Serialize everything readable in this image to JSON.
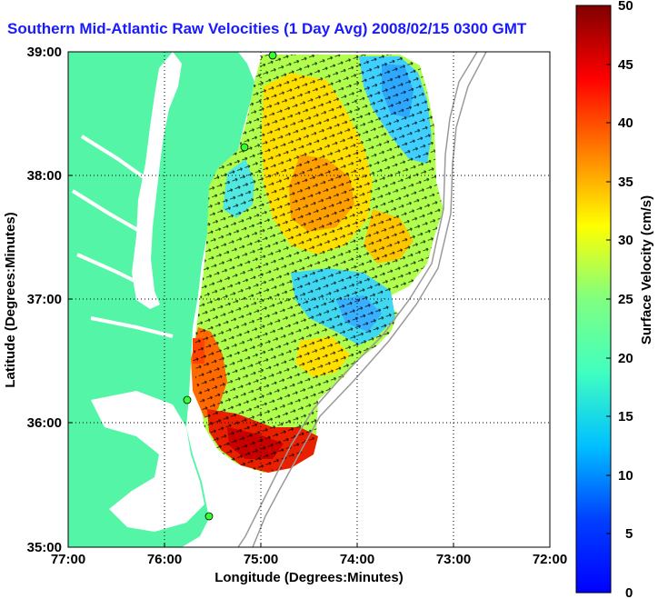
{
  "title": "Southern Mid-Atlantic Raw Velocities (1 Day Avg) 2008/02/15 0300 GMT",
  "x_axis": {
    "label": "Longitude (Degrees:Minutes)",
    "ticks": [
      "77:00",
      "76:00",
      "75:00",
      "74:00",
      "73:00",
      "72:00"
    ]
  },
  "y_axis": {
    "label": "Latitude (Degrees:Minutes)",
    "ticks": [
      "39:00",
      "38:00",
      "37:00",
      "36:00",
      "35:00"
    ]
  },
  "colorbar": {
    "label": "Surface Velocity (cm/s)",
    "ticks": [
      "50",
      "45",
      "40",
      "35",
      "30",
      "25",
      "20",
      "15",
      "10",
      "5",
      "0"
    ],
    "range": [
      0,
      50
    ],
    "colormap": "jet"
  },
  "colors": {
    "land": "#55f5a8",
    "water": "#ffffff",
    "title": "#1a1aff",
    "station": "#33ff33"
  },
  "grid": "dotted",
  "icons": [
    "radar-station-icon"
  ]
}
